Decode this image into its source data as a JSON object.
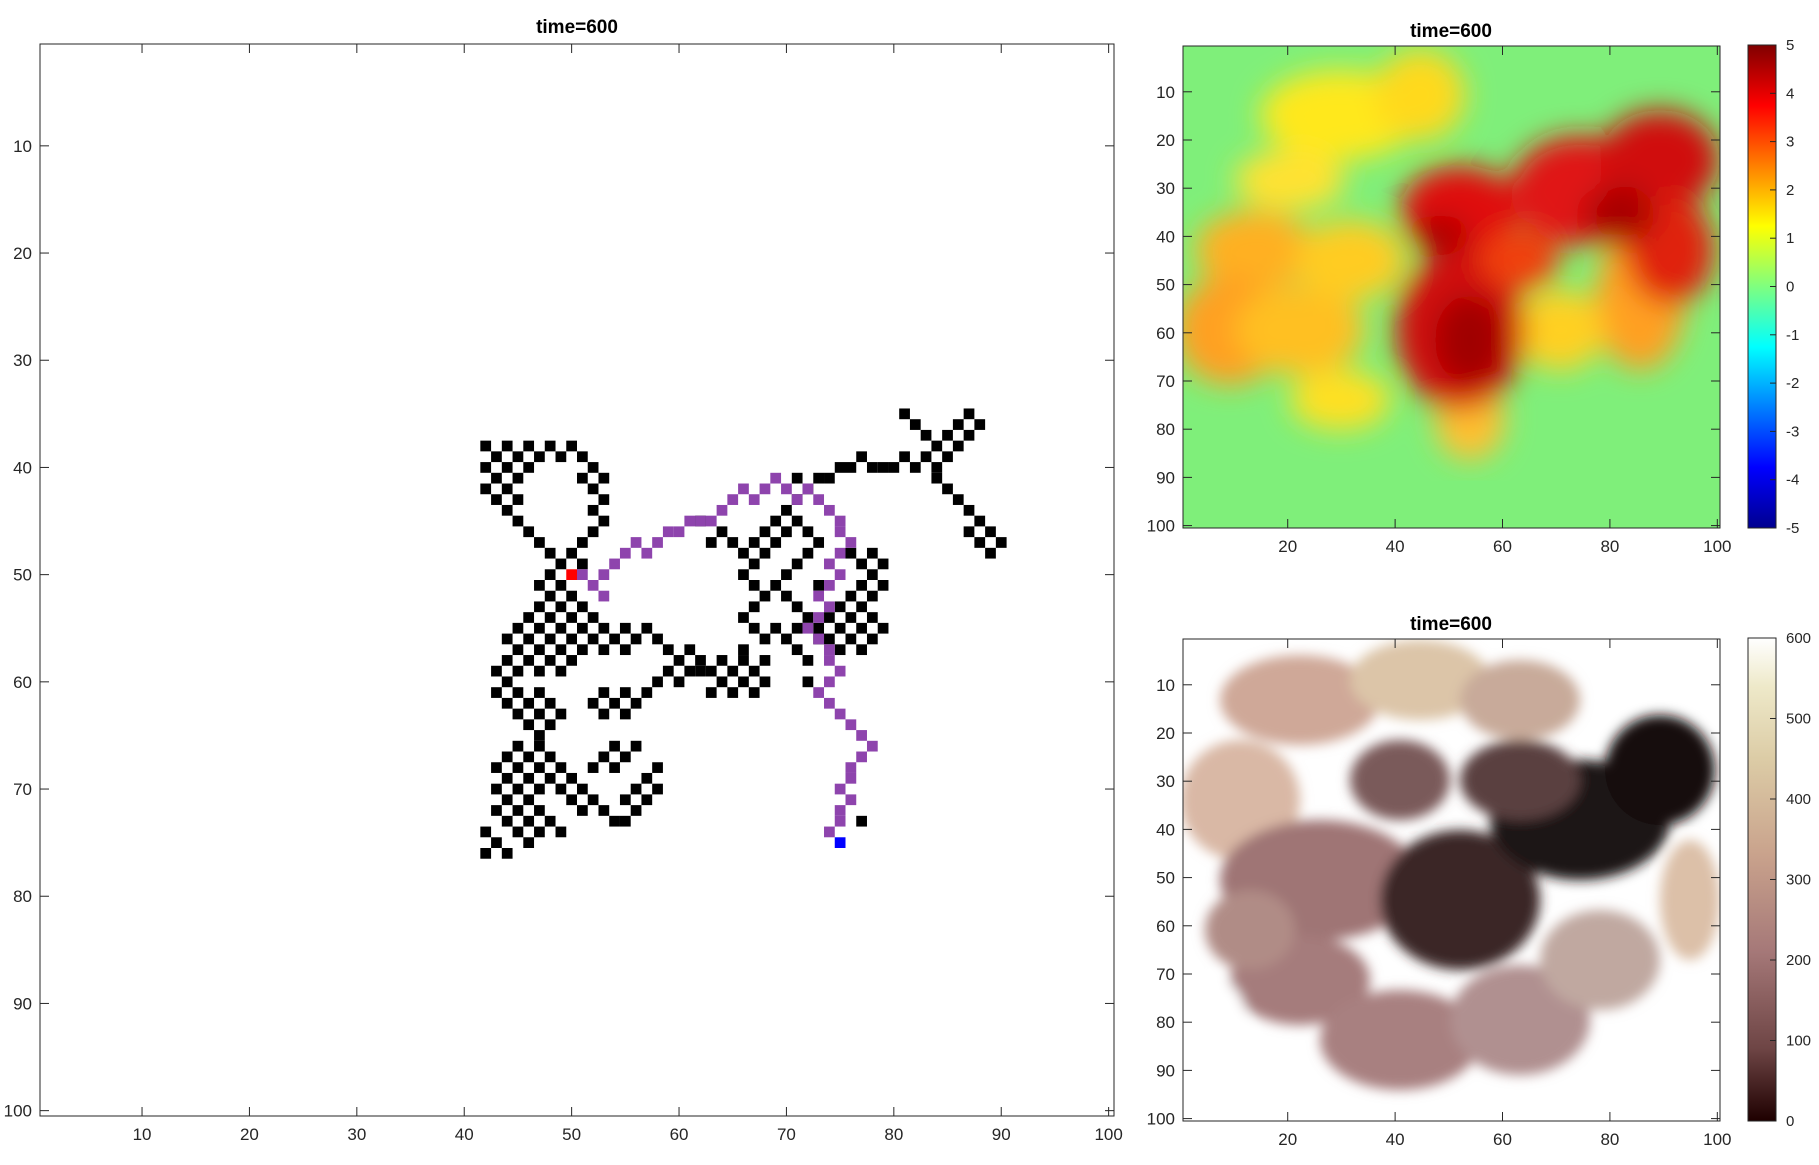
{
  "figure": {
    "charts": [
      {
        "title": "time=600"
      },
      {
        "title": "time=600"
      },
      {
        "title": "time=600"
      }
    ]
  },
  "chart_data": [
    {
      "type": "heatmap",
      "title": "time=600",
      "xlim": [
        0.5,
        100.5
      ],
      "ylim": [
        0.5,
        100.5
      ],
      "y_reversed": true,
      "xticks": [
        10,
        20,
        30,
        40,
        50,
        60,
        70,
        80,
        90,
        100
      ],
      "yticks": [
        10,
        20,
        30,
        40,
        50,
        60,
        70,
        80,
        90,
        100
      ],
      "colors": {
        "occupied": "#000000",
        "path": "#8e44ad",
        "start": "#ff0000",
        "end": "#0000ff"
      },
      "occupied_cells": [
        [
          42,
          38
        ],
        [
          44,
          38
        ],
        [
          46,
          38
        ],
        [
          48,
          38
        ],
        [
          50,
          38
        ],
        [
          43,
          39
        ],
        [
          45,
          39
        ],
        [
          47,
          39
        ],
        [
          49,
          39
        ],
        [
          51,
          39
        ],
        [
          42,
          40
        ],
        [
          44,
          40
        ],
        [
          46,
          40
        ],
        [
          52,
          40
        ],
        [
          43,
          41
        ],
        [
          45,
          41
        ],
        [
          51,
          41
        ],
        [
          53,
          41
        ],
        [
          42,
          42
        ],
        [
          44,
          42
        ],
        [
          52,
          42
        ],
        [
          43,
          43
        ],
        [
          45,
          43
        ],
        [
          53,
          43
        ],
        [
          44,
          44
        ],
        [
          52,
          44
        ],
        [
          45,
          45
        ],
        [
          53,
          45
        ],
        [
          46,
          46
        ],
        [
          52,
          46
        ],
        [
          47,
          47
        ],
        [
          51,
          47
        ],
        [
          48,
          48
        ],
        [
          50,
          48
        ],
        [
          49,
          49
        ],
        [
          51,
          49
        ],
        [
          48,
          50
        ],
        [
          47,
          51
        ],
        [
          49,
          51
        ],
        [
          48,
          52
        ],
        [
          50,
          52
        ],
        [
          47,
          53
        ],
        [
          49,
          53
        ],
        [
          51,
          53
        ],
        [
          46,
          54
        ],
        [
          48,
          54
        ],
        [
          50,
          54
        ],
        [
          52,
          54
        ],
        [
          45,
          55
        ],
        [
          47,
          55
        ],
        [
          49,
          55
        ],
        [
          51,
          55
        ],
        [
          53,
          55
        ],
        [
          55,
          55
        ],
        [
          57,
          55
        ],
        [
          44,
          56
        ],
        [
          46,
          56
        ],
        [
          48,
          56
        ],
        [
          50,
          56
        ],
        [
          52,
          56
        ],
        [
          54,
          56
        ],
        [
          56,
          56
        ],
        [
          58,
          56
        ],
        [
          45,
          57
        ],
        [
          47,
          57
        ],
        [
          49,
          57
        ],
        [
          51,
          57
        ],
        [
          53,
          57
        ],
        [
          55,
          57
        ],
        [
          59,
          57
        ],
        [
          61,
          57
        ],
        [
          44,
          58
        ],
        [
          46,
          58
        ],
        [
          48,
          58
        ],
        [
          50,
          58
        ],
        [
          60,
          58
        ],
        [
          62,
          58
        ],
        [
          43,
          59
        ],
        [
          45,
          59
        ],
        [
          47,
          59
        ],
        [
          49,
          59
        ],
        [
          59,
          59
        ],
        [
          61,
          59
        ],
        [
          44,
          60
        ],
        [
          58,
          60
        ],
        [
          60,
          60
        ],
        [
          43,
          61
        ],
        [
          45,
          61
        ],
        [
          47,
          61
        ],
        [
          53,
          61
        ],
        [
          55,
          61
        ],
        [
          57,
          61
        ],
        [
          44,
          62
        ],
        [
          46,
          62
        ],
        [
          48,
          62
        ],
        [
          52,
          62
        ],
        [
          54,
          62
        ],
        [
          56,
          62
        ],
        [
          45,
          63
        ],
        [
          47,
          63
        ],
        [
          49,
          63
        ],
        [
          53,
          63
        ],
        [
          55,
          63
        ],
        [
          46,
          64
        ],
        [
          48,
          64
        ],
        [
          47,
          65
        ],
        [
          45,
          66
        ],
        [
          47,
          66
        ],
        [
          54,
          66
        ],
        [
          56,
          66
        ],
        [
          44,
          67
        ],
        [
          46,
          67
        ],
        [
          48,
          67
        ],
        [
          53,
          67
        ],
        [
          55,
          67
        ],
        [
          43,
          68
        ],
        [
          45,
          68
        ],
        [
          47,
          68
        ],
        [
          49,
          68
        ],
        [
          52,
          68
        ],
        [
          54,
          68
        ],
        [
          58,
          68
        ],
        [
          44,
          69
        ],
        [
          46,
          69
        ],
        [
          48,
          69
        ],
        [
          50,
          69
        ],
        [
          57,
          69
        ],
        [
          43,
          70
        ],
        [
          45,
          70
        ],
        [
          47,
          70
        ],
        [
          49,
          70
        ],
        [
          51,
          70
        ],
        [
          56,
          70
        ],
        [
          58,
          70
        ],
        [
          44,
          71
        ],
        [
          46,
          71
        ],
        [
          50,
          71
        ],
        [
          52,
          71
        ],
        [
          55,
          71
        ],
        [
          57,
          71
        ],
        [
          43,
          72
        ],
        [
          45,
          72
        ],
        [
          47,
          72
        ],
        [
          51,
          72
        ],
        [
          53,
          72
        ],
        [
          56,
          72
        ],
        [
          44,
          73
        ],
        [
          46,
          73
        ],
        [
          48,
          73
        ],
        [
          54,
          73
        ],
        [
          55,
          73
        ],
        [
          42,
          74
        ],
        [
          45,
          74
        ],
        [
          47,
          74
        ],
        [
          49,
          74
        ],
        [
          43,
          75
        ],
        [
          46,
          75
        ],
        [
          42,
          76
        ],
        [
          44,
          76
        ],
        [
          62,
          59
        ],
        [
          63,
          59
        ],
        [
          64,
          58
        ],
        [
          64,
          60
        ],
        [
          63,
          61
        ],
        [
          65,
          59
        ],
        [
          66,
          58
        ],
        [
          65,
          61
        ],
        [
          66,
          60
        ],
        [
          67,
          59
        ],
        [
          68,
          58
        ],
        [
          67,
          61
        ],
        [
          68,
          60
        ],
        [
          66,
          57
        ],
        [
          68,
          56
        ],
        [
          67,
          55
        ],
        [
          66,
          54
        ],
        [
          67,
          53
        ],
        [
          68,
          52
        ],
        [
          67,
          51
        ],
        [
          66,
          50
        ],
        [
          67,
          49
        ],
        [
          68,
          48
        ],
        [
          69,
          47
        ],
        [
          70,
          46
        ],
        [
          71,
          45
        ],
        [
          72,
          46
        ],
        [
          73,
          47
        ],
        [
          72,
          48
        ],
        [
          71,
          49
        ],
        [
          70,
          50
        ],
        [
          69,
          51
        ],
        [
          70,
          52
        ],
        [
          71,
          53
        ],
        [
          72,
          54
        ],
        [
          71,
          55
        ],
        [
          70,
          56
        ],
        [
          71,
          57
        ],
        [
          72,
          58
        ],
        [
          72,
          60
        ],
        [
          69,
          55
        ],
        [
          73,
          55
        ],
        [
          73,
          51
        ],
        [
          73,
          56
        ],
        [
          74,
          56
        ],
        [
          75,
          57
        ],
        [
          76,
          56
        ],
        [
          77,
          55
        ],
        [
          78,
          54
        ],
        [
          77,
          53
        ],
        [
          76,
          52
        ],
        [
          77,
          51
        ],
        [
          78,
          50
        ],
        [
          77,
          49
        ],
        [
          76,
          48
        ],
        [
          78,
          48
        ],
        [
          79,
          49
        ],
        [
          79,
          51
        ],
        [
          78,
          52
        ],
        [
          78,
          56
        ],
        [
          77,
          57
        ],
        [
          79,
          55
        ],
        [
          76,
          54
        ],
        [
          75,
          53
        ],
        [
          74,
          54
        ],
        [
          75,
          55
        ],
        [
          64,
          46
        ],
        [
          65,
          47
        ],
        [
          66,
          48
        ],
        [
          67,
          47
        ],
        [
          68,
          46
        ],
        [
          62,
          45
        ],
        [
          63,
          47
        ],
        [
          69,
          45
        ],
        [
          70,
          44
        ],
        [
          71,
          43
        ],
        [
          72,
          42
        ],
        [
          73,
          41
        ],
        [
          74,
          41
        ],
        [
          75,
          40
        ],
        [
          76,
          40
        ],
        [
          77,
          39
        ],
        [
          78,
          40
        ],
        [
          79,
          40
        ],
        [
          80,
          40
        ],
        [
          81,
          39
        ],
        [
          82,
          40
        ],
        [
          83,
          39
        ],
        [
          84,
          40
        ],
        [
          85,
          39
        ],
        [
          86,
          38
        ],
        [
          87,
          37
        ],
        [
          88,
          36
        ],
        [
          87,
          35
        ],
        [
          86,
          36
        ],
        [
          85,
          37
        ],
        [
          84,
          38
        ],
        [
          83,
          37
        ],
        [
          82,
          36
        ],
        [
          81,
          35
        ],
        [
          84,
          41
        ],
        [
          85,
          42
        ],
        [
          86,
          43
        ],
        [
          87,
          44
        ],
        [
          88,
          45
        ],
        [
          89,
          46
        ],
        [
          90,
          47
        ],
        [
          89,
          48
        ],
        [
          88,
          47
        ],
        [
          87,
          46
        ],
        [
          71,
          41
        ],
        [
          77,
          73
        ]
      ],
      "path_cells": [
        [
          51,
          50
        ],
        [
          52,
          51
        ],
        [
          53,
          52
        ],
        [
          53,
          50
        ],
        [
          54,
          49
        ],
        [
          55,
          48
        ],
        [
          56,
          47
        ],
        [
          57,
          48
        ],
        [
          58,
          47
        ],
        [
          59,
          46
        ],
        [
          60,
          46
        ],
        [
          61,
          45
        ],
        [
          62,
          45
        ],
        [
          63,
          45
        ],
        [
          64,
          44
        ],
        [
          65,
          43
        ],
        [
          66,
          42
        ],
        [
          67,
          43
        ],
        [
          68,
          42
        ],
        [
          69,
          41
        ],
        [
          70,
          42
        ],
        [
          71,
          43
        ],
        [
          72,
          42
        ],
        [
          73,
          43
        ],
        [
          74,
          44
        ],
        [
          75,
          45
        ],
        [
          75,
          46
        ],
        [
          76,
          47
        ],
        [
          75,
          48
        ],
        [
          74,
          49
        ],
        [
          75,
          50
        ],
        [
          74,
          51
        ],
        [
          73,
          52
        ],
        [
          74,
          53
        ],
        [
          73,
          54
        ],
        [
          72,
          55
        ],
        [
          73,
          56
        ],
        [
          74,
          57
        ],
        [
          74,
          58
        ],
        [
          75,
          59
        ],
        [
          74,
          60
        ],
        [
          73,
          61
        ],
        [
          74,
          62
        ],
        [
          75,
          63
        ],
        [
          76,
          64
        ],
        [
          77,
          65
        ],
        [
          78,
          66
        ],
        [
          77,
          67
        ],
        [
          76,
          68
        ],
        [
          76,
          69
        ],
        [
          75,
          70
        ],
        [
          76,
          71
        ],
        [
          75,
          72
        ],
        [
          75,
          73
        ],
        [
          74,
          74
        ]
      ],
      "start_cell": [
        50,
        50
      ],
      "end_cell": [
        75,
        75
      ]
    },
    {
      "type": "heatmap",
      "title": "time=600",
      "xlim": [
        0.5,
        100.5
      ],
      "ylim": [
        0.5,
        100.5
      ],
      "y_reversed": true,
      "xticks": [
        20,
        40,
        60,
        80,
        100
      ],
      "yticks": [
        10,
        20,
        30,
        40,
        50,
        60,
        70,
        80,
        90,
        100
      ],
      "colormap": "jet",
      "clim": [
        -5,
        5
      ],
      "colorbar_ticks": [
        5,
        4,
        3,
        2,
        1,
        0,
        -1,
        -2,
        -3,
        -4,
        -5
      ]
    },
    {
      "type": "heatmap",
      "title": "time=600",
      "xlim": [
        0.5,
        100.5
      ],
      "ylim": [
        0.5,
        100.5
      ],
      "y_reversed": true,
      "xticks": [
        20,
        40,
        60,
        80,
        100
      ],
      "yticks": [
        10,
        20,
        30,
        40,
        50,
        60,
        70,
        80,
        90,
        100
      ],
      "colormap": "pink",
      "clim": [
        0,
        600
      ],
      "colorbar_ticks": [
        600,
        500,
        400,
        300,
        200,
        100,
        0
      ]
    }
  ]
}
